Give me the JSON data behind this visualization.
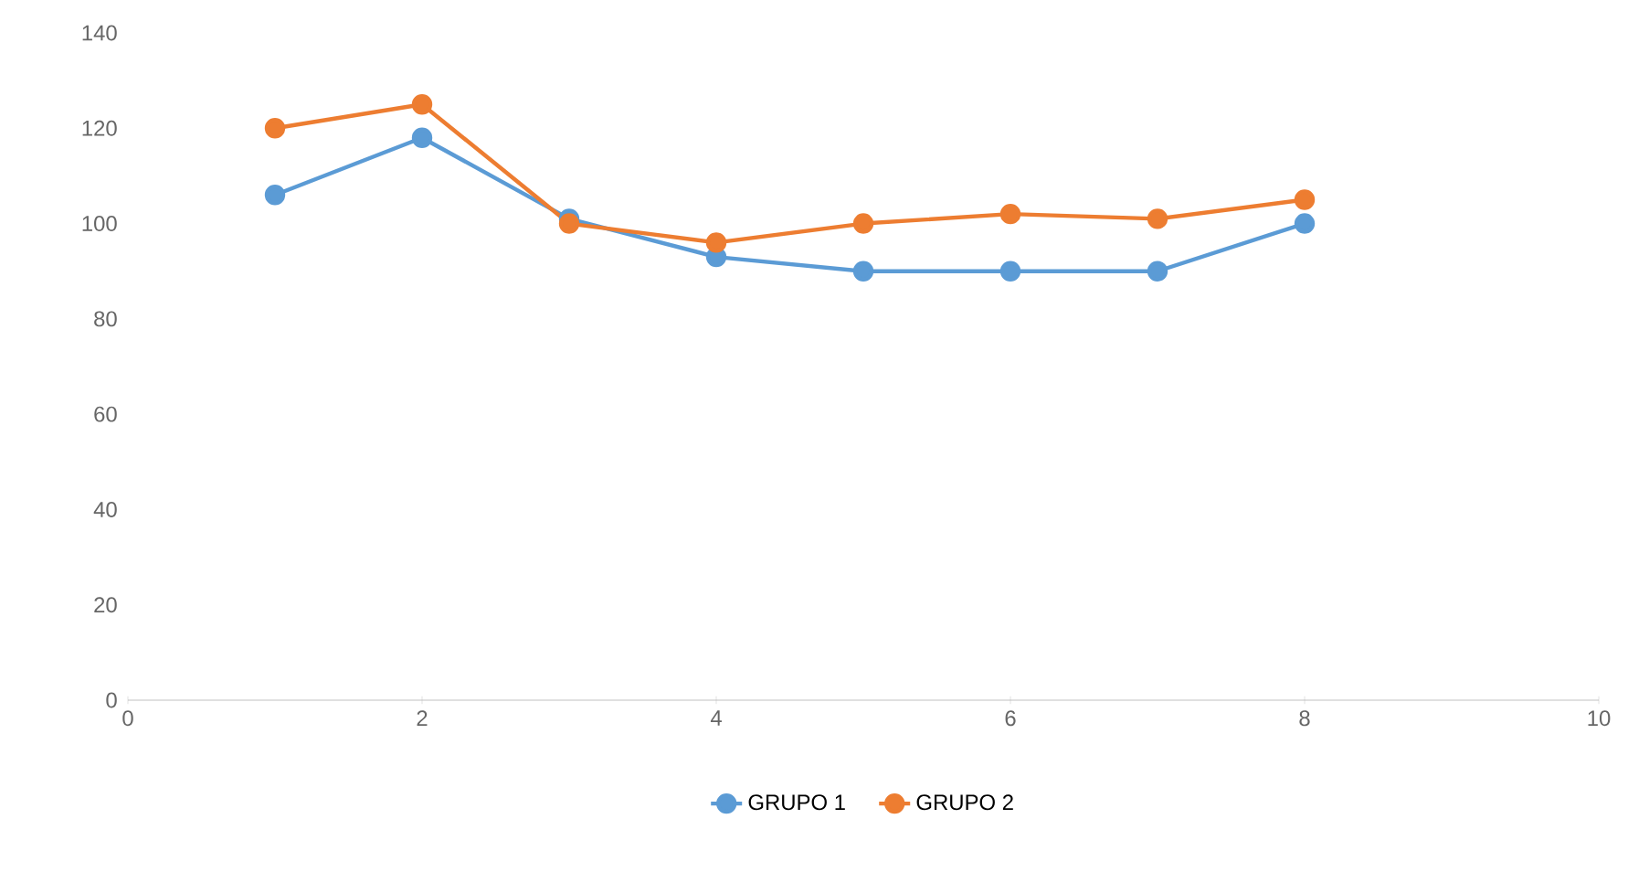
{
  "chart_data": {
    "type": "line",
    "x": [
      1,
      2,
      3,
      4,
      5,
      6,
      7,
      8
    ],
    "xlim": [
      0,
      10
    ],
    "xticks": [
      0,
      2,
      4,
      6,
      8,
      10
    ],
    "ylim": [
      0,
      140
    ],
    "yticks": [
      0,
      20,
      40,
      60,
      80,
      100,
      120,
      140
    ],
    "legend": "bottom",
    "marker": "circle",
    "line_style": "solid",
    "series": [
      {
        "name": "GRUPO 1",
        "color": "#5b9bd5",
        "values": [
          106,
          118,
          101,
          93,
          90,
          90,
          90,
          100
        ]
      },
      {
        "name": "GRUPO 2",
        "color": "#ed7d31",
        "values": [
          120,
          125,
          100,
          96,
          100,
          102,
          101,
          105
        ]
      }
    ]
  }
}
